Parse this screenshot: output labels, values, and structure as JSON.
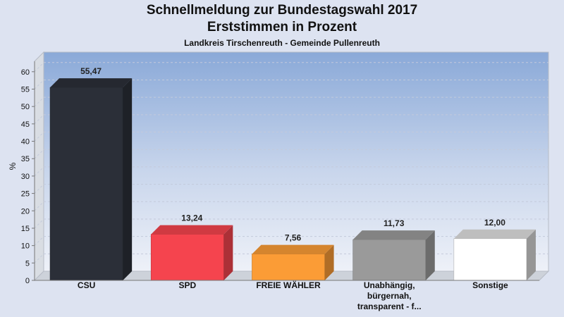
{
  "header": {
    "title_line1": "Schnellmeldung zur Bundestagswahl 2017",
    "title_line2": "Erststimmen in Prozent",
    "subtitle": "Landkreis Tirschenreuth - Gemeinde Pullenreuth"
  },
  "chart_data": {
    "type": "bar",
    "title": "Schnellmeldung zur Bundestagswahl 2017 Erststimmen in Prozent",
    "subtitle": "Landkreis Tirschenreuth - Gemeinde Pullenreuth",
    "ylabel": "%",
    "xlabel": "",
    "ylim": [
      0,
      63
    ],
    "yticks": [
      0,
      5,
      10,
      15,
      20,
      25,
      30,
      35,
      40,
      45,
      50,
      55,
      60
    ],
    "categories": [
      [
        "CSU"
      ],
      [
        "SPD"
      ],
      [
        "FREIE WÄHLER"
      ],
      [
        "Unabhängig,",
        "bürgernah,",
        "transparent - f..."
      ],
      [
        "Sonstige"
      ]
    ],
    "values": [
      55.47,
      13.24,
      7.56,
      11.73,
      12.0
    ],
    "value_labels": [
      "55,47",
      "13,24",
      "7,56",
      "11,73",
      "12,00"
    ],
    "colors": [
      "#2b2f38",
      "#f5444e",
      "#fb9c36",
      "#9a9a9a",
      "#ffffff"
    ],
    "grid": true,
    "legend": "none"
  }
}
